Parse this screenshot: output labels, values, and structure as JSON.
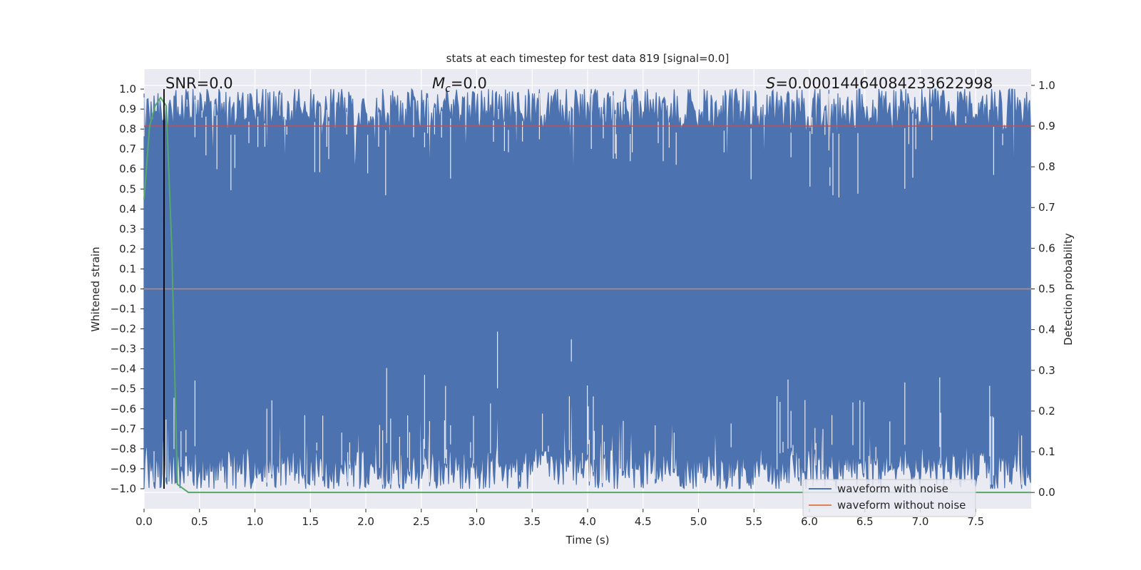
{
  "chart_data": {
    "type": "line",
    "title": "stats at each timestep for test data 819 [signal=0.0]",
    "xlabel": "Time (s)",
    "ylabel_left": "Whitened strain",
    "ylabel_right": "Detection probability",
    "xlim": [
      0.0,
      8.0
    ],
    "ylim_left": [
      -1.1,
      1.1
    ],
    "ylim_right": [
      -0.04,
      1.04
    ],
    "x_ticks": [
      "0.0",
      "0.5",
      "1.0",
      "1.5",
      "2.0",
      "2.5",
      "3.0",
      "3.5",
      "4.0",
      "4.5",
      "5.0",
      "5.5",
      "6.0",
      "6.5",
      "7.0",
      "7.5"
    ],
    "y_ticks_left": [
      "1.0",
      "0.9",
      "0.8",
      "0.7",
      "0.6",
      "0.5",
      "0.4",
      "0.3",
      "0.2",
      "0.1",
      "0.0",
      "−0.1",
      "−0.2",
      "−0.3",
      "−0.4",
      "−0.5",
      "−0.6",
      "−0.7",
      "−0.8",
      "−0.9",
      "−1.0"
    ],
    "y_ticks_right": [
      "1.0",
      "0.9",
      "0.8",
      "0.7",
      "0.6",
      "0.5",
      "0.4",
      "0.3",
      "0.2",
      "0.1",
      "0.0"
    ],
    "annotations": {
      "snr": "SNR=0.0",
      "mc_symbol": "M",
      "mc_sub": "c",
      "mc_value": "=0.0",
      "s_symbol": "S",
      "s_value": "=0.00014464084233622998"
    },
    "legend": {
      "placement": "lower-right",
      "entries": [
        {
          "label": "waveform with noise",
          "color": "#4c72b0"
        },
        {
          "label": "waveform without noise",
          "color": "#dd8452"
        }
      ]
    },
    "series": [
      {
        "name": "waveform with noise",
        "color": "#4c72b0",
        "description_type": "noise",
        "envelope_upper_typical": 0.9,
        "envelope_lower_typical": -0.9,
        "min": -1.0,
        "max": 1.0
      },
      {
        "name": "waveform without noise",
        "color": "#dd8452",
        "values_constant": 0.0
      }
    ],
    "detection_probability": {
      "color": "#55a868",
      "x": [
        0.0,
        0.05,
        0.1,
        0.15,
        0.2,
        0.25,
        0.3,
        0.35,
        0.4,
        8.0
      ],
      "y": [
        0.72,
        0.9,
        0.95,
        0.97,
        0.95,
        0.6,
        0.02,
        0.01,
        0.0,
        0.0
      ]
    },
    "threshold": {
      "color": "#c44e52",
      "right_axis_value": 0.9
    },
    "marker_line": {
      "x": 0.18,
      "color": "#000000"
    },
    "grid": true,
    "background": "#eaeaf2"
  }
}
